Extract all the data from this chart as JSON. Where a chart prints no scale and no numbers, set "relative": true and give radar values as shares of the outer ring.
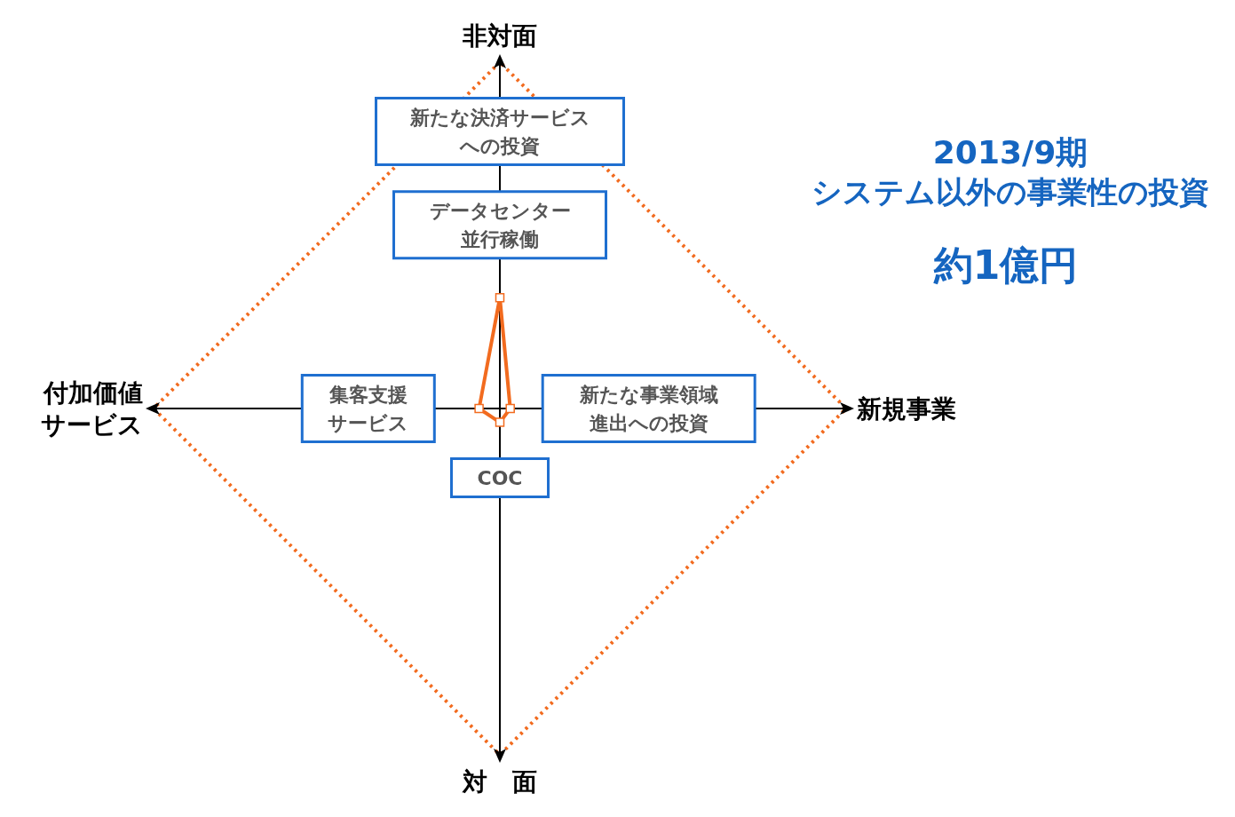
{
  "chart_data": {
    "type": "radar",
    "title": "2013/9期",
    "subtitle": "システム以外の事業性の投資",
    "categories": [
      "非対面",
      "新規事業",
      "対　面",
      "付加価値サービス"
    ],
    "relative": true,
    "marker": "square",
    "series": [
      {
        "color": "#f26b1f",
        "values": [
          0.32,
          0.03,
          0.04,
          0.06
        ]
      }
    ],
    "annotations": [
      {
        "text": "新たな決済サービスへの投資",
        "x": "非対面"
      },
      {
        "text": "データセンター並行稼働",
        "x": "非対面"
      },
      {
        "text": "新たな事業領域進出への投資",
        "x": "新規事業"
      },
      {
        "text": "COC",
        "x": "対　面"
      },
      {
        "text": "集客支援サービス",
        "x": "付加価値サービス"
      },
      "約1億円"
    ]
  }
}
